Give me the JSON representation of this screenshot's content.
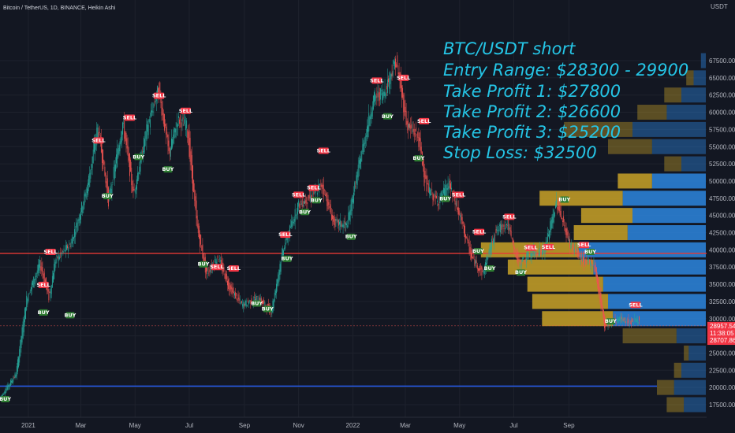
{
  "header": {
    "symbol_text": "Bitcoin / TetherUS, 1D, BINANCE, Heikin Ashi"
  },
  "chart_data": {
    "type": "candlestick",
    "price_unit": "USDT",
    "x_ticks": [
      "2021",
      "Mar",
      "May",
      "Jul",
      "Sep",
      "Nov",
      "2022",
      "Mar",
      "May",
      "Jul",
      "Sep"
    ],
    "y_ticks": [
      17500,
      20000,
      22500,
      25000,
      27500,
      30000,
      32500,
      35000,
      37500,
      40000,
      42500,
      45000,
      47500,
      50000,
      52500,
      55000,
      57500,
      60000,
      62500,
      65000,
      67500
    ],
    "ylim": [
      16500,
      69500
    ],
    "price_path": [
      [
        0,
        18500
      ],
      [
        18,
        22000
      ],
      [
        30,
        33000
      ],
      [
        45,
        38000
      ],
      [
        55,
        33000
      ],
      [
        62,
        38500
      ],
      [
        80,
        41000
      ],
      [
        98,
        49000
      ],
      [
        110,
        58000
      ],
      [
        122,
        47000
      ],
      [
        138,
        58500
      ],
      [
        150,
        48000
      ],
      [
        165,
        57500
      ],
      [
        178,
        63500
      ],
      [
        190,
        54000
      ],
      [
        200,
        59000
      ],
      [
        210,
        58000
      ],
      [
        222,
        43000
      ],
      [
        232,
        36500
      ],
      [
        245,
        39000
      ],
      [
        258,
        34500
      ],
      [
        272,
        32000
      ],
      [
        290,
        33000
      ],
      [
        305,
        31000
      ],
      [
        318,
        40000
      ],
      [
        335,
        46500
      ],
      [
        348,
        47500
      ],
      [
        362,
        49500
      ],
      [
        375,
        44000
      ],
      [
        390,
        43500
      ],
      [
        408,
        55000
      ],
      [
        420,
        62000
      ],
      [
        432,
        63000
      ],
      [
        445,
        67500
      ],
      [
        458,
        58000
      ],
      [
        470,
        56500
      ],
      [
        480,
        49000
      ],
      [
        492,
        47000
      ],
      [
        505,
        49500
      ],
      [
        518,
        44500
      ],
      [
        530,
        39000
      ],
      [
        543,
        36500
      ],
      [
        556,
        42500
      ],
      [
        570,
        44000
      ],
      [
        583,
        38000
      ],
      [
        598,
        39500
      ],
      [
        612,
        40000
      ],
      [
        626,
        47000
      ],
      [
        640,
        41000
      ],
      [
        655,
        38500
      ],
      [
        668,
        38000
      ],
      [
        680,
        29000
      ],
      [
        695,
        30000
      ],
      [
        708,
        29500
      ],
      [
        718,
        29900
      ]
    ],
    "signals": [
      {
        "label": "BUY",
        "day": 5,
        "price": 18300
      },
      {
        "label": "BUY",
        "day": 48,
        "price": 30900
      },
      {
        "label": "SELL",
        "day": 48,
        "price": 34900
      },
      {
        "label": "SELL",
        "day": 56,
        "price": 39700
      },
      {
        "label": "BUY",
        "day": 78,
        "price": 30500
      },
      {
        "label": "SELL",
        "day": 110,
        "price": 55900
      },
      {
        "label": "BUY",
        "day": 120,
        "price": 47800
      },
      {
        "label": "SELL",
        "day": 145,
        "price": 59200
      },
      {
        "label": "BUY",
        "day": 155,
        "price": 53500
      },
      {
        "label": "SELL",
        "day": 178,
        "price": 62400
      },
      {
        "label": "BUY",
        "day": 188,
        "price": 51700
      },
      {
        "label": "SELL",
        "day": 208,
        "price": 60200
      },
      {
        "label": "BUY",
        "day": 228,
        "price": 37900
      },
      {
        "label": "SELL",
        "day": 243,
        "price": 37500
      },
      {
        "label": "SELL",
        "day": 262,
        "price": 37300
      },
      {
        "label": "BUY",
        "day": 288,
        "price": 32200
      },
      {
        "label": "BUY",
        "day": 300,
        "price": 31400
      },
      {
        "label": "SELL",
        "day": 320,
        "price": 42200
      },
      {
        "label": "BUY",
        "day": 322,
        "price": 38700
      },
      {
        "label": "SELL",
        "day": 335,
        "price": 48000
      },
      {
        "label": "BUY",
        "day": 342,
        "price": 45500
      },
      {
        "label": "SELL",
        "day": 352,
        "price": 49000
      },
      {
        "label": "BUY",
        "day": 355,
        "price": 47200
      },
      {
        "label": "SELL",
        "day": 363,
        "price": 54400
      },
      {
        "label": "BUY",
        "day": 394,
        "price": 41900
      },
      {
        "label": "SELL",
        "day": 423,
        "price": 64600
      },
      {
        "label": "SELL",
        "day": 453,
        "price": 65000
      },
      {
        "label": "BUY",
        "day": 435,
        "price": 59400
      },
      {
        "label": "SELL",
        "day": 476,
        "price": 58700
      },
      {
        "label": "BUY",
        "day": 470,
        "price": 53300
      },
      {
        "label": "BUY",
        "day": 500,
        "price": 47400
      },
      {
        "label": "SELL",
        "day": 515,
        "price": 48000
      },
      {
        "label": "SELL",
        "day": 538,
        "price": 42600
      },
      {
        "label": "BUY",
        "day": 537,
        "price": 39800
      },
      {
        "label": "BUY",
        "day": 550,
        "price": 37300
      },
      {
        "label": "SELL",
        "day": 572,
        "price": 44800
      },
      {
        "label": "BUY",
        "day": 585,
        "price": 36700
      },
      {
        "label": "SELL",
        "day": 596,
        "price": 40300
      },
      {
        "label": "SELL",
        "day": 616,
        "price": 40400
      },
      {
        "label": "BUY",
        "day": 634,
        "price": 47300
      },
      {
        "label": "SELL",
        "day": 656,
        "price": 40700
      },
      {
        "label": "BUY",
        "day": 663,
        "price": 39700
      },
      {
        "label": "BUY",
        "day": 686,
        "price": 29600
      },
      {
        "label": "SELL",
        "day": 714,
        "price": 32000
      }
    ],
    "horizontal_lines": [
      {
        "price": 39500,
        "color": "#e53935"
      },
      {
        "price": 20200,
        "color": "#2962ff"
      }
    ],
    "volume_profile": [
      {
        "price": 67500,
        "buy": 2,
        "sell": 0
      },
      {
        "price": 65000,
        "buy": 5,
        "sell": 3
      },
      {
        "price": 62500,
        "buy": 10,
        "sell": 7
      },
      {
        "price": 60000,
        "buy": 16,
        "sell": 12
      },
      {
        "price": 57500,
        "buy": 30,
        "sell": 28
      },
      {
        "price": 55000,
        "buy": 22,
        "sell": 18
      },
      {
        "price": 52500,
        "buy": 10,
        "sell": 7
      },
      {
        "price": 50000,
        "buy": 22,
        "sell": 14
      },
      {
        "price": 47500,
        "buy": 34,
        "sell": 34
      },
      {
        "price": 45000,
        "buy": 30,
        "sell": 21
      },
      {
        "price": 42500,
        "buy": 32,
        "sell": 22
      },
      {
        "price": 40000,
        "buy": 52,
        "sell": 40
      },
      {
        "price": 37500,
        "buy": 46,
        "sell": 35
      },
      {
        "price": 35000,
        "buy": 42,
        "sell": 31
      },
      {
        "price": 32500,
        "buy": 40,
        "sell": 31
      },
      {
        "price": 30000,
        "buy": 38,
        "sell": 29
      },
      {
        "price": 27500,
        "buy": 12,
        "sell": 22
      },
      {
        "price": 25000,
        "buy": 7,
        "sell": 2
      },
      {
        "price": 22500,
        "buy": 10,
        "sell": 3
      },
      {
        "price": 20000,
        "buy": 13,
        "sell": 7
      },
      {
        "price": 17500,
        "buy": 9,
        "sell": 7
      }
    ],
    "price_labels": {
      "current": "28957.54",
      "countdown": "11:38:05",
      "low": "28707.86"
    },
    "current_price": 28957.54,
    "low_price": 28707.86
  },
  "annotation": {
    "lines": [
      "BTC/USDT short",
      "Entry Range: $28300 - 29900",
      "Take Profit 1: $27800",
      "Take Profit 2: $26600",
      "Take Profit 3: $25200",
      "Stop Loss: $32500"
    ]
  },
  "colors": {
    "background": "#131722",
    "candle_up": "#26a69a",
    "candle_down": "#ef5350",
    "buy_badge": "#2e7d32",
    "sell_badge": "#f23645",
    "vp_buy": "#2b7fd4",
    "vp_sell": "#c9a227",
    "annotation": "#25c5e6",
    "grid": "#1e222d"
  }
}
